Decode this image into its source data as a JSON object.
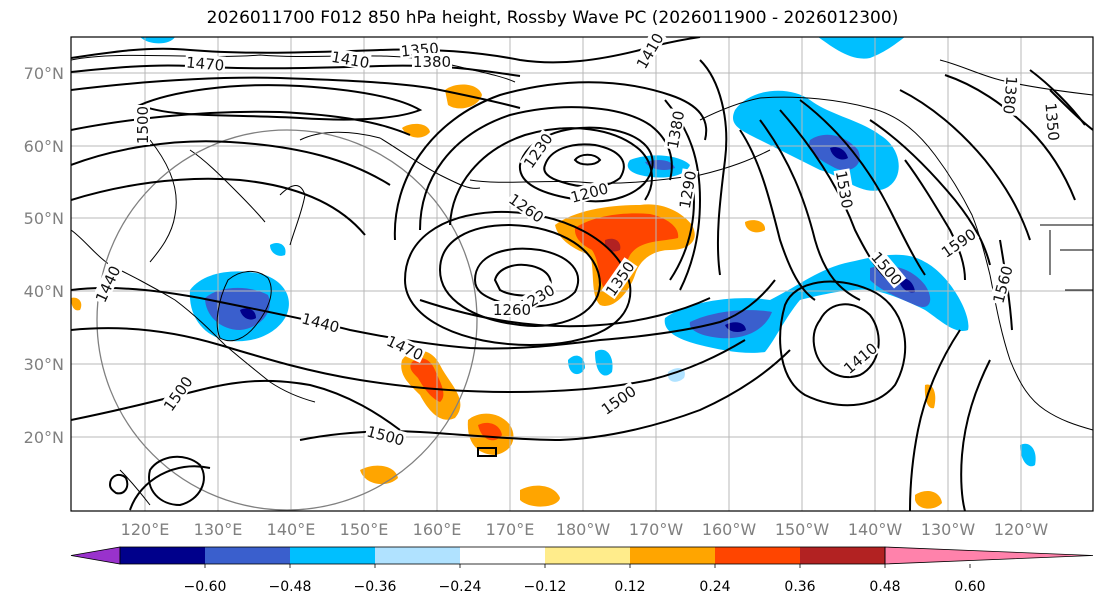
{
  "title": "2026011700 F012 850 hPa height, Rossby Wave PC (2026011900 - 2026012300)",
  "lat_labels": [
    "70°N",
    "60°N",
    "50°N",
    "40°N",
    "30°N",
    "20°N"
  ],
  "lon_labels": [
    "120°E",
    "130°E",
    "140°E",
    "150°E",
    "160°E",
    "170°E",
    "180°W",
    "170°W",
    "160°W",
    "150°W",
    "140°W",
    "130°W",
    "120°W"
  ],
  "colorbar": {
    "ticks": [
      "−0.60",
      "−0.48",
      "−0.36",
      "−0.24",
      "−0.12",
      "0.12",
      "0.24",
      "0.36",
      "0.48",
      "0.60"
    ],
    "colors": [
      "#9932cc",
      "#00008b",
      "#3a5fcd",
      "#00bfff",
      "#b0e2ff",
      "#ffffff",
      "#ffec8b",
      "#ffa500",
      "#ff4500",
      "#b22222",
      "#ff82ab"
    ]
  },
  "contour_labels": [
    "1350",
    "1410",
    "1380",
    "1470",
    "1500",
    "1410",
    "1230",
    "1200",
    "1260",
    "1380",
    "1290",
    "1530",
    "1590",
    "1500",
    "1560",
    "1350",
    "1230",
    "1260",
    "1440",
    "1440",
    "1470",
    "1500",
    "1500",
    "1500",
    "1410",
    "1380",
    "1350"
  ]
}
